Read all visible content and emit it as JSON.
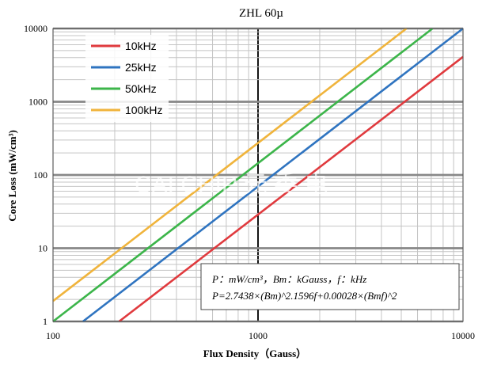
{
  "chart_data": {
    "type": "line",
    "title": "ZHL 60µ",
    "xlabel": "Flux Density（Gauss）",
    "ylabel": "Core Loss (mW/cm³)",
    "x_scale": "log",
    "y_scale": "log",
    "xlim": [
      100,
      10000
    ],
    "ylim": [
      1,
      10000
    ],
    "x_ticks": [
      "100",
      "1000",
      "10000"
    ],
    "y_ticks": [
      "1",
      "10",
      "100",
      "1000",
      "10000"
    ],
    "grid": true,
    "legend_position": "top-left",
    "series": [
      {
        "name": "10kHz",
        "color": "#e03a3e",
        "x": [
          210,
          10000
        ],
        "y": [
          1,
          4100
        ]
      },
      {
        "name": "25kHz",
        "color": "#2f74c0",
        "x": [
          140,
          10000
        ],
        "y": [
          1,
          10000
        ]
      },
      {
        "name": "50kHz",
        "color": "#3cb54a",
        "x": [
          100,
          7100
        ],
        "y": [
          1,
          10000
        ]
      },
      {
        "name": "100kHz",
        "color": "#f0b43c",
        "x": [
          100,
          5300
        ],
        "y": [
          1.9,
          10000
        ]
      }
    ],
    "annotation": {
      "line1": "P：mW/cm³，Bm：kGauss，f：kHz",
      "line2": "P=2.7438×(Bm)^2.1596f+0.00028×(Bmf)^2"
    },
    "watermark": "CAI CHIP 元 委 电"
  }
}
